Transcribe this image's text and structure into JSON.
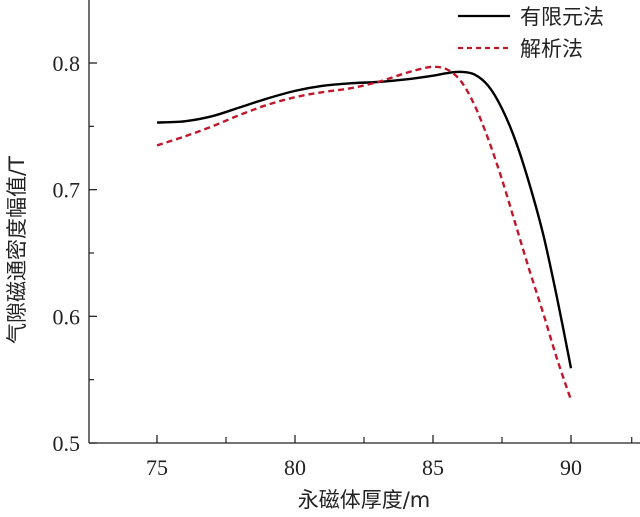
{
  "chart_data": {
    "type": "line",
    "title": "",
    "xlabel": "永磁体厚度/m",
    "ylabel": "气隙磁通密度幅值/T",
    "xlim": [
      72.5,
      92.5
    ],
    "ylim": [
      0.5,
      0.85
    ],
    "xticks": [
      75,
      80,
      85,
      90
    ],
    "xtick_labels": [
      "75",
      "80",
      "85",
      "90"
    ],
    "yticks": [
      0.5,
      0.6,
      0.7,
      0.8
    ],
    "ytick_labels": [
      "0.5",
      "0.6",
      "0.7",
      "0.8"
    ],
    "grid": false,
    "legend_position": "upper right",
    "series": [
      {
        "name": "有限元法",
        "style": "solid",
        "color": "#000000",
        "x": [
          75,
          76,
          77,
          78,
          79,
          80,
          81,
          82,
          83,
          84,
          85,
          85.5,
          86,
          86.5,
          87,
          87.5,
          88,
          88.5,
          89,
          89.5,
          90
        ],
        "values": [
          0.753,
          0.754,
          0.758,
          0.765,
          0.772,
          0.778,
          0.782,
          0.784,
          0.785,
          0.787,
          0.79,
          0.792,
          0.793,
          0.791,
          0.782,
          0.764,
          0.738,
          0.704,
          0.664,
          0.614,
          0.559
        ]
      },
      {
        "name": "解析法",
        "style": "dashed",
        "color": "#c0182a",
        "x": [
          75,
          76,
          77,
          78,
          79,
          80,
          81,
          82,
          83,
          84,
          84.5,
          85,
          85.5,
          86,
          86.5,
          87,
          87.5,
          88,
          88.5,
          89,
          89.5,
          90
        ],
        "values": [
          0.735,
          0.742,
          0.75,
          0.759,
          0.767,
          0.773,
          0.777,
          0.78,
          0.785,
          0.792,
          0.795,
          0.797,
          0.795,
          0.786,
          0.767,
          0.74,
          0.708,
          0.672,
          0.636,
          0.602,
          0.566,
          0.534
        ]
      }
    ]
  },
  "legend": {
    "items": [
      {
        "label": "有限元法"
      },
      {
        "label": "解析法"
      }
    ]
  }
}
